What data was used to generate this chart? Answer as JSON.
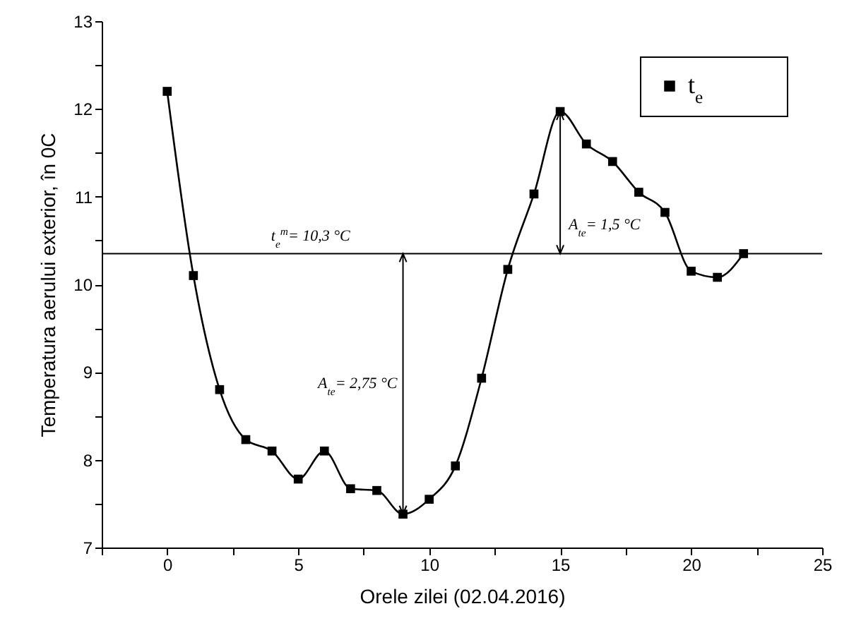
{
  "chart_data": {
    "type": "line",
    "xlabel": "Orele zilei (02.04.2016)",
    "ylabel": "Temperatura aerului exterior, în 0C",
    "x": [
      0,
      1,
      2,
      3,
      4,
      5,
      6,
      7,
      8,
      9,
      10,
      11,
      12,
      13,
      14,
      15,
      16,
      17,
      18,
      19,
      20,
      21,
      22
    ],
    "series": [
      {
        "name": "t$_{e}$",
        "color": "#000000",
        "values": [
          12.2,
          10.1,
          8.8,
          8.23,
          8.1,
          7.78,
          8.1,
          7.67,
          7.65,
          7.38,
          7.55,
          7.93,
          8.93,
          10.17,
          11.03,
          11.97,
          11.6,
          11.4,
          11.05,
          10.82,
          10.15,
          10.08,
          10.35
        ]
      }
    ],
    "xlim": [
      -2.5,
      25
    ],
    "xticks": [
      0,
      5,
      10,
      15,
      20,
      25,
      {
        "value": -2.5,
        "label": null
      },
      {
        "value": 2.5,
        "label": null
      },
      {
        "value": 7.5,
        "label": null
      },
      {
        "value": 12.5,
        "label": null
      },
      {
        "value": 17.5,
        "label": null
      },
      {
        "value": 22.5,
        "label": null
      }
    ],
    "ylim": [
      7,
      13
    ],
    "yticks": [
      7,
      8,
      9,
      10,
      11,
      12,
      13,
      {
        "value": 7.5,
        "label": null
      },
      {
        "value": 8.5,
        "label": null
      },
      {
        "value": 9.5,
        "label": null
      },
      {
        "value": 10.5,
        "label": null
      },
      {
        "value": 11.5,
        "label": null
      },
      {
        "value": 12.5,
        "label": null
      }
    ],
    "ref_lines": [
      {
        "axis": "y",
        "value": 10.35,
        "label": "t$_{e}$$^{m}$= 10,3 °C"
      }
    ],
    "annotations": [
      "A$_{te}$= 2,75 °C",
      "A$_{te}$= 1,5 °C"
    ],
    "marker": "square",
    "line_style": "solid",
    "legend": "top right",
    "grid": false
  }
}
